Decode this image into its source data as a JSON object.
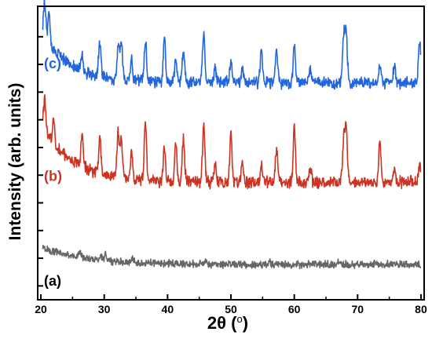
{
  "chart_data": {
    "type": "line",
    "xlabel": "2θ (",
    "xlabel_unit": "o",
    "xlabel_close": ")",
    "ylabel": "Intensity (arb. units)",
    "xlim": [
      19.5,
      80.5
    ],
    "xticks": [
      20,
      30,
      40,
      50,
      60,
      70,
      80
    ],
    "yticks_count": 10,
    "ytick_labels_shown": false,
    "grid": false,
    "legend": "none",
    "series": [
      {
        "name": "(a)",
        "color": "#666666",
        "baseline": 0.12,
        "noise": 0.01,
        "decay": {
          "amplitude": 0.06,
          "tau": 7.0
        },
        "peaks": [
          {
            "x": 26.2,
            "h": 0.02
          },
          {
            "x": 29.5,
            "h": 0.015
          },
          {
            "x": 30.2,
            "h": 0.02
          },
          {
            "x": 34.5,
            "h": 0.012
          },
          {
            "x": 46.0,
            "h": 0.01
          },
          {
            "x": 56.0,
            "h": 0.009
          },
          {
            "x": 63.0,
            "h": 0.009
          },
          {
            "x": 67.0,
            "h": 0.012
          },
          {
            "x": 73.0,
            "h": 0.009
          }
        ]
      },
      {
        "name": "(b)",
        "color": "#cc3322",
        "baseline": 0.4,
        "noise": 0.016,
        "decay": {
          "amplitude": 0.2,
          "tau": 5.0
        },
        "peaks": [
          {
            "x": 20.6,
            "h": 0.1
          },
          {
            "x": 22.0,
            "h": 0.08
          },
          {
            "x": 26.5,
            "h": 0.1
          },
          {
            "x": 29.3,
            "h": 0.12
          },
          {
            "x": 32.2,
            "h": 0.15
          },
          {
            "x": 32.7,
            "h": 0.13
          },
          {
            "x": 34.3,
            "h": 0.09
          },
          {
            "x": 36.5,
            "h": 0.2
          },
          {
            "x": 39.5,
            "h": 0.11
          },
          {
            "x": 41.3,
            "h": 0.13
          },
          {
            "x": 42.5,
            "h": 0.15
          },
          {
            "x": 45.7,
            "h": 0.2
          },
          {
            "x": 47.5,
            "h": 0.06
          },
          {
            "x": 50.0,
            "h": 0.17
          },
          {
            "x": 51.8,
            "h": 0.08
          },
          {
            "x": 54.8,
            "h": 0.06
          },
          {
            "x": 57.2,
            "h": 0.11
          },
          {
            "x": 60.0,
            "h": 0.19
          },
          {
            "x": 62.5,
            "h": 0.05
          },
          {
            "x": 67.8,
            "h": 0.15
          },
          {
            "x": 68.2,
            "h": 0.19
          },
          {
            "x": 73.5,
            "h": 0.14
          },
          {
            "x": 75.8,
            "h": 0.05
          },
          {
            "x": 79.8,
            "h": 0.06
          }
        ]
      },
      {
        "name": "(c)",
        "color": "#2266dd",
        "baseline": 0.74,
        "noise": 0.016,
        "decay": {
          "amplitude": 0.17,
          "tau": 4.5
        },
        "peaks": [
          {
            "x": 20.6,
            "h": 0.13
          },
          {
            "x": 21.3,
            "h": 0.1
          },
          {
            "x": 26.5,
            "h": 0.06
          },
          {
            "x": 29.3,
            "h": 0.11
          },
          {
            "x": 32.2,
            "h": 0.12
          },
          {
            "x": 32.7,
            "h": 0.13
          },
          {
            "x": 34.3,
            "h": 0.07
          },
          {
            "x": 36.5,
            "h": 0.14
          },
          {
            "x": 39.5,
            "h": 0.15
          },
          {
            "x": 41.3,
            "h": 0.08
          },
          {
            "x": 42.5,
            "h": 0.11
          },
          {
            "x": 45.7,
            "h": 0.17
          },
          {
            "x": 47.5,
            "h": 0.05
          },
          {
            "x": 50.0,
            "h": 0.07
          },
          {
            "x": 51.8,
            "h": 0.05
          },
          {
            "x": 54.8,
            "h": 0.11
          },
          {
            "x": 57.2,
            "h": 0.11
          },
          {
            "x": 60.0,
            "h": 0.13
          },
          {
            "x": 62.5,
            "h": 0.05
          },
          {
            "x": 67.8,
            "h": 0.16
          },
          {
            "x": 68.2,
            "h": 0.16
          },
          {
            "x": 73.5,
            "h": 0.06
          },
          {
            "x": 75.8,
            "h": 0.05
          },
          {
            "x": 79.8,
            "h": 0.15
          }
        ]
      }
    ]
  }
}
